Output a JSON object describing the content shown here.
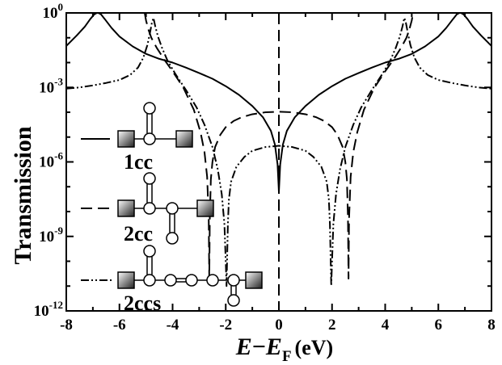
{
  "chart_data": {
    "type": "line",
    "title": "",
    "xlabel": {
      "main": "E",
      "minus": "−",
      "sub_main": "E",
      "sub": "F",
      "unit": "(eV)"
    },
    "ylabel": "Transmission",
    "xlim": [
      -8,
      8
    ],
    "ylim_log10": [
      -12,
      0
    ],
    "yscale": "log",
    "x_ticks": [
      -8,
      -6,
      -4,
      -2,
      0,
      2,
      4,
      6,
      8
    ],
    "x_tick_labels": [
      "-8",
      "-6",
      "-4",
      "-2",
      "0",
      "2",
      "4",
      "6",
      "8"
    ],
    "y_ticks": [
      {
        "base": "10",
        "exp": "0",
        "log": 0
      },
      {
        "base": "10",
        "exp": "-3",
        "log": -3
      },
      {
        "base": "10",
        "exp": "-6",
        "log": -6
      },
      {
        "base": "10",
        "exp": "-9",
        "log": -9
      },
      {
        "base": "10",
        "exp": "-12",
        "log": -12
      }
    ],
    "grid": false,
    "legend_placement": "left",
    "series": [
      {
        "name": "1cc",
        "style": "solid",
        "x": [
          -8,
          -7.6,
          -7.3,
          -7.1,
          -6.95,
          -6.85,
          -6.8,
          -6.7,
          -6.55,
          -6.3,
          -6.0,
          -5.5,
          -5.0,
          -4.5,
          -4.0,
          -3.5,
          -3.0,
          -2.5,
          -2.0,
          -1.5,
          -1.0,
          -0.6,
          -0.3,
          -0.15,
          -0.05,
          0,
          0.05,
          0.15,
          0.3,
          0.6,
          1.0,
          1.5,
          2.0,
          2.5,
          3.0,
          3.5,
          4.0,
          4.5,
          5.0,
          5.5,
          6.0,
          6.3,
          6.55,
          6.7,
          6.8,
          6.85,
          6.95,
          7.1,
          7.3,
          7.6,
          8
        ],
        "log10_y": [
          -1.33,
          -0.9,
          -0.55,
          -0.25,
          -0.06,
          0.0,
          0.0,
          -0.05,
          -0.25,
          -0.6,
          -0.95,
          -1.35,
          -1.65,
          -1.85,
          -2.0,
          -2.2,
          -2.42,
          -2.65,
          -2.95,
          -3.3,
          -3.75,
          -4.2,
          -4.75,
          -5.3,
          -6.1,
          -7.2,
          -6.1,
          -5.3,
          -4.75,
          -4.2,
          -3.75,
          -3.3,
          -2.95,
          -2.65,
          -2.42,
          -2.2,
          -2.0,
          -1.85,
          -1.65,
          -1.35,
          -0.95,
          -0.6,
          -0.25,
          -0.05,
          0.0,
          0.0,
          -0.06,
          -0.25,
          -0.55,
          -0.9,
          -1.33
        ]
      },
      {
        "name": "2cc",
        "style": "dashed",
        "x": [
          -5.05,
          -5.0,
          -4.9,
          -4.8,
          -4.6,
          -4.3,
          -4.0,
          -3.6,
          -3.2,
          -2.95,
          -2.8,
          -2.7,
          -2.64,
          -2.62,
          -2.6,
          -2.56,
          -2.5,
          -2.4,
          -2.2,
          -2.0,
          -1.7,
          -1.4,
          -1.0,
          -0.5,
          0,
          0.5,
          1.0,
          1.4,
          1.7,
          2.0,
          2.2,
          2.4,
          2.5,
          2.56,
          2.6,
          2.62,
          2.64,
          2.7,
          2.8,
          2.95,
          3.2,
          3.6,
          4.0,
          4.3,
          4.6,
          4.8,
          4.9,
          5.0,
          5.05
        ],
        "log10_y": [
          0,
          -0.3,
          -0.7,
          -1.0,
          -1.4,
          -1.9,
          -2.35,
          -3.0,
          -3.9,
          -4.8,
          -5.6,
          -6.6,
          -8.3,
          -10.7,
          -8.3,
          -6.7,
          -6.0,
          -5.4,
          -4.9,
          -4.6,
          -4.35,
          -4.2,
          -4.08,
          -4.0,
          -3.98,
          -4.0,
          -4.08,
          -4.2,
          -4.35,
          -4.6,
          -4.9,
          -5.4,
          -6.0,
          -6.7,
          -8.3,
          -10.7,
          -8.3,
          -6.6,
          -5.6,
          -4.8,
          -3.9,
          -3.0,
          -2.35,
          -1.9,
          -1.4,
          -1.0,
          -0.7,
          -0.3,
          0
        ]
      },
      {
        "name": "2ccs",
        "style": "dash-dot-dot",
        "x": [
          -8,
          -7.5,
          -7.0,
          -6.5,
          -6.0,
          -5.6,
          -5.3,
          -5.1,
          -4.95,
          -4.85,
          -4.78,
          -4.72,
          -4.65,
          -4.55,
          -4.4,
          -4.2,
          -3.9,
          -3.5,
          -3.1,
          -2.8,
          -2.5,
          -2.3,
          -2.15,
          -2.05,
          -2.0,
          -1.97,
          -1.95,
          -1.92,
          -1.88,
          -1.8,
          -1.6,
          -1.3,
          -1.0,
          -0.5,
          0,
          0.5,
          1.0,
          1.3,
          1.6,
          1.8,
          1.88,
          1.92,
          1.95,
          1.97,
          2.0,
          2.05,
          2.15,
          2.3,
          2.5,
          2.8,
          3.1,
          3.5,
          3.9,
          4.2,
          4.4,
          4.55,
          4.65,
          4.72,
          4.78,
          4.85,
          4.95,
          5.1,
          5.3,
          5.6,
          6.0,
          6.5,
          7.0,
          7.5,
          8
        ],
        "log10_y": [
          -3.05,
          -3.0,
          -2.92,
          -2.82,
          -2.7,
          -2.5,
          -2.2,
          -1.8,
          -1.3,
          -0.8,
          -0.4,
          -0.2,
          -0.55,
          -0.95,
          -1.4,
          -1.9,
          -2.45,
          -3.1,
          -3.8,
          -4.5,
          -5.4,
          -6.3,
          -7.3,
          -8.5,
          -10.0,
          -11.0,
          -10.0,
          -8.5,
          -7.5,
          -6.8,
          -6.2,
          -5.8,
          -5.55,
          -5.4,
          -5.35,
          -5.4,
          -5.55,
          -5.8,
          -6.2,
          -6.8,
          -7.5,
          -8.5,
          -10.0,
          -11.0,
          -10.0,
          -8.5,
          -7.3,
          -6.3,
          -5.4,
          -4.5,
          -3.8,
          -3.1,
          -2.45,
          -1.9,
          -1.4,
          -0.95,
          -0.55,
          -0.2,
          -0.4,
          -0.8,
          -1.3,
          -1.8,
          -2.2,
          -2.5,
          -2.7,
          -2.82,
          -2.92,
          -3.0,
          -3.05
        ]
      }
    ],
    "annotations": [
      {
        "name": "fermi-level-line",
        "style": "dashed",
        "x": 0
      }
    ]
  }
}
